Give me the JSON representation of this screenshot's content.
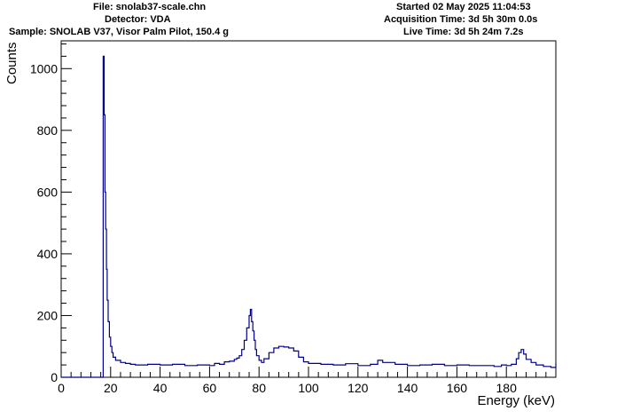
{
  "header": {
    "file": "File: snolab37-scale.chn",
    "detector": "Detector: VDA",
    "sample": "Sample: SNOLAB V37, Visor Palm Pilot, 150.4 g",
    "started": "Started 02 May 2025 11:04:53",
    "acquisition": "Acquisition Time: 3d 5h 30m 0.0s",
    "live": "Live Time: 3d 5h 24m 7.2s"
  },
  "colors": {
    "histogram": "#00008b",
    "axis": "#000000",
    "background": "#ffffff"
  },
  "chart_data": {
    "type": "line",
    "style": "step-histogram",
    "xlabel": "Energy (keV)",
    "ylabel": "Counts",
    "xlim": [
      0,
      200
    ],
    "ylim": [
      0,
      1090
    ],
    "xticks": [
      0,
      20,
      40,
      60,
      80,
      100,
      120,
      140,
      160,
      180
    ],
    "yticks": [
      0,
      200,
      400,
      600,
      800,
      1000
    ],
    "grid": false,
    "legend": "none",
    "series": [
      {
        "x": [
          0,
          16.5,
          17.0,
          17.4,
          17.7,
          18.0,
          18.3,
          18.6,
          19.0,
          19.5,
          20.0,
          20.5,
          21.0,
          22,
          24,
          26,
          28,
          30,
          35,
          40,
          45,
          50,
          55,
          60,
          62,
          64,
          66,
          68,
          70,
          71,
          72,
          73,
          74,
          75,
          76,
          76.5,
          77,
          77.5,
          78,
          78.5,
          79,
          80,
          81,
          82,
          84,
          86,
          88,
          90,
          92,
          94,
          96,
          98,
          100,
          105,
          110,
          115,
          120,
          125,
          128,
          130,
          135,
          140,
          145,
          150,
          155,
          160,
          165,
          170,
          175,
          178,
          180,
          182,
          184,
          185,
          186,
          187,
          188,
          190,
          192,
          195,
          198,
          200
        ],
        "y": [
          0,
          0,
          1040,
          850,
          600,
          480,
          350,
          250,
          180,
          130,
          100,
          80,
          65,
          55,
          48,
          45,
          42,
          40,
          42,
          40,
          42,
          38,
          40,
          38,
          45,
          42,
          50,
          52,
          58,
          62,
          70,
          90,
          120,
          160,
          200,
          220,
          180,
          150,
          120,
          90,
          70,
          55,
          48,
          60,
          80,
          95,
          100,
          98,
          95,
          85,
          65,
          50,
          45,
          42,
          40,
          44,
          38,
          42,
          55,
          48,
          42,
          38,
          40,
          42,
          38,
          40,
          38,
          38,
          35,
          40,
          38,
          42,
          60,
          80,
          90,
          75,
          58,
          48,
          40,
          35,
          32,
          45
        ]
      }
    ]
  }
}
